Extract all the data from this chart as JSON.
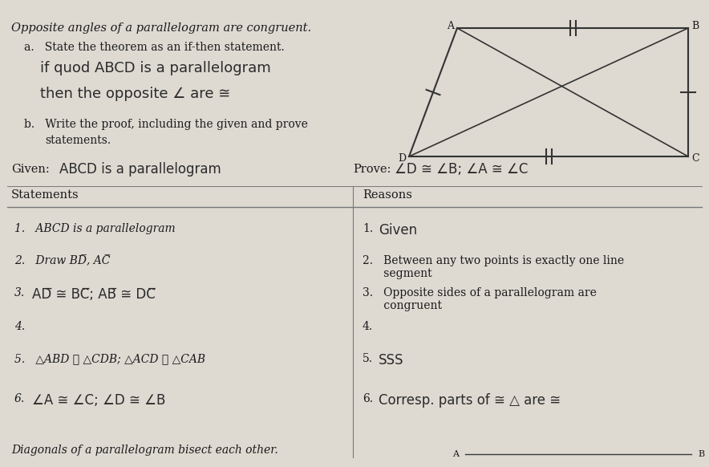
{
  "bg_color": "#d8d4cc",
  "page_color": "#dedad2",
  "title": "Opposite angles of a parallelogram are congruent.",
  "part_a_label": "a.   State the theorem as an if-then statement.",
  "part_b_label": "b.   Write the proof, including the given and prove\n        statements.",
  "given_label": "Given:",
  "prove_label": "Prove:",
  "col_header_left": "Statements",
  "col_header_right": "Reasons",
  "rows": [
    {
      "stmt": "1.   ABCD is a parallelogram",
      "reason_typed": "1.",
      "reason_hw": "Given",
      "stmt_hw": false
    },
    {
      "stmt": "2.   Draw BD̅, AC̅",
      "reason_typed": "2.   Between any two points is exactly one line\n      segment",
      "reason_hw": null,
      "stmt_hw": false
    },
    {
      "stmt_typed": "3.",
      "stmt_hw_text": "AD̅ ≅ BC̅; AB̅ ≅ DC̅",
      "reason_typed": "3.   Opposite sides of a parallelogram are\n      congruent",
      "reason_hw": null,
      "stmt_hw": true
    },
    {
      "stmt": "4.",
      "reason_typed": "4.",
      "reason_hw": null,
      "stmt_hw": false
    },
    {
      "stmt": "5.   △ABD ≅ △CDB; △ACD ≅ △CAB",
      "reason_typed": "5.",
      "reason_hw": "SSS",
      "stmt_hw": false
    },
    {
      "stmt_typed": "6.",
      "stmt_hw_text": "∠A ≅ ∠C; ∠D ≅ ∠B",
      "reason_typed": "6.",
      "reason_hw": "Corresp. parts of ≅ △ are ≅",
      "stmt_hw": true
    }
  ],
  "footer": "Diagonals of a parallelogram bisect each other.",
  "text_color": "#1a1a1a",
  "handwritten_color": "#2a2a2a",
  "divider_color": "#777777",
  "para_color": "#3a3a3a"
}
